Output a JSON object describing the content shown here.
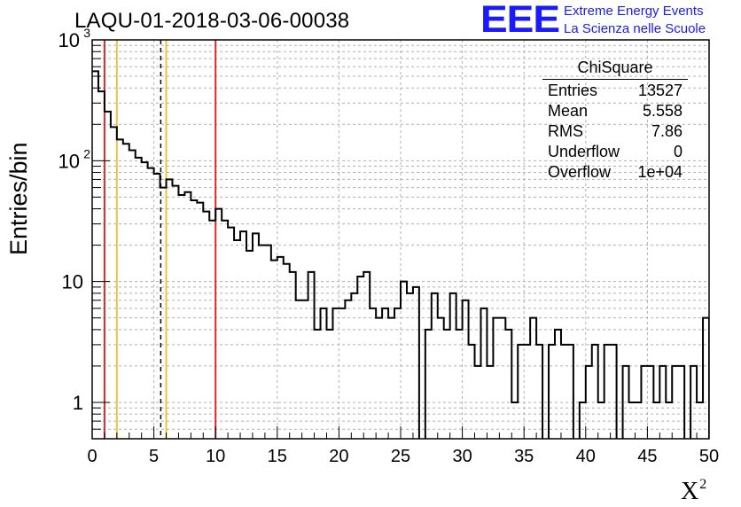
{
  "header": {
    "run_title": "LAQU-01-2018-03-06-00038",
    "logo_text": "EEE",
    "logo_line1": "Extreme Energy Events",
    "logo_line2": "La Scienza nelle Scuole",
    "logo_color": "#1a1aff"
  },
  "stats": {
    "title": "ChiSquare",
    "rows": [
      {
        "key": "Entries",
        "value": "13527"
      },
      {
        "key": "Mean",
        "value": "5.558"
      },
      {
        "key": "RMS",
        "value": "7.86"
      },
      {
        "key": "Underflow",
        "value": "0"
      },
      {
        "key": "Overflow",
        "value": "1e+04"
      }
    ]
  },
  "chart_data": {
    "type": "histogram",
    "title": "LAQU-01-2018-03-06-00038",
    "xlabel": "X²",
    "ylabel": "Entries/bin",
    "xlim": [
      0,
      50
    ],
    "ylim": [
      0.5,
      1000
    ],
    "yscale": "log",
    "grid": true,
    "bin_width": 0.5,
    "x_ticks": [
      "0",
      "5",
      "10",
      "15",
      "20",
      "25",
      "30",
      "35",
      "40",
      "45",
      "50"
    ],
    "y_ticks": [
      {
        "value": 1,
        "label": "1"
      },
      {
        "value": 10,
        "label": "10"
      },
      {
        "value": 100,
        "label": "10",
        "exp": "2"
      },
      {
        "value": 1000,
        "label": "10",
        "exp": "3"
      }
    ],
    "bin_values": [
      550,
      375,
      255,
      190,
      150,
      138,
      122,
      106,
      97,
      87,
      78,
      60,
      70,
      62,
      52,
      55,
      47,
      45,
      38,
      32,
      40,
      32,
      28,
      22,
      26,
      18,
      25,
      20,
      20,
      15,
      16,
      14,
      12,
      7,
      7,
      12,
      4,
      6,
      4,
      6,
      6,
      7,
      8,
      11,
      12,
      6,
      5,
      6,
      5,
      6,
      10,
      8,
      9,
      0.3,
      4,
      8,
      5,
      4,
      8,
      4,
      7,
      3,
      2,
      6,
      2,
      5,
      5,
      4,
      1,
      3,
      3,
      5,
      3,
      0.3,
      3,
      4,
      3,
      3,
      0.3,
      1,
      2,
      3,
      1,
      3,
      3,
      0.3,
      2,
      1,
      1,
      2,
      2,
      1,
      2,
      1,
      2,
      2,
      0.3,
      2,
      1,
      5
    ],
    "reference_lines": [
      {
        "x": 1,
        "color": "#e0282a",
        "style": "solid"
      },
      {
        "x": 2,
        "color": "#f2c23a",
        "style": "solid"
      },
      {
        "x": 5.558,
        "color": "#000000",
        "style": "dashed"
      },
      {
        "x": 6,
        "color": "#f2c23a",
        "style": "solid"
      },
      {
        "x": 10,
        "color": "#e0282a",
        "style": "solid"
      }
    ]
  }
}
